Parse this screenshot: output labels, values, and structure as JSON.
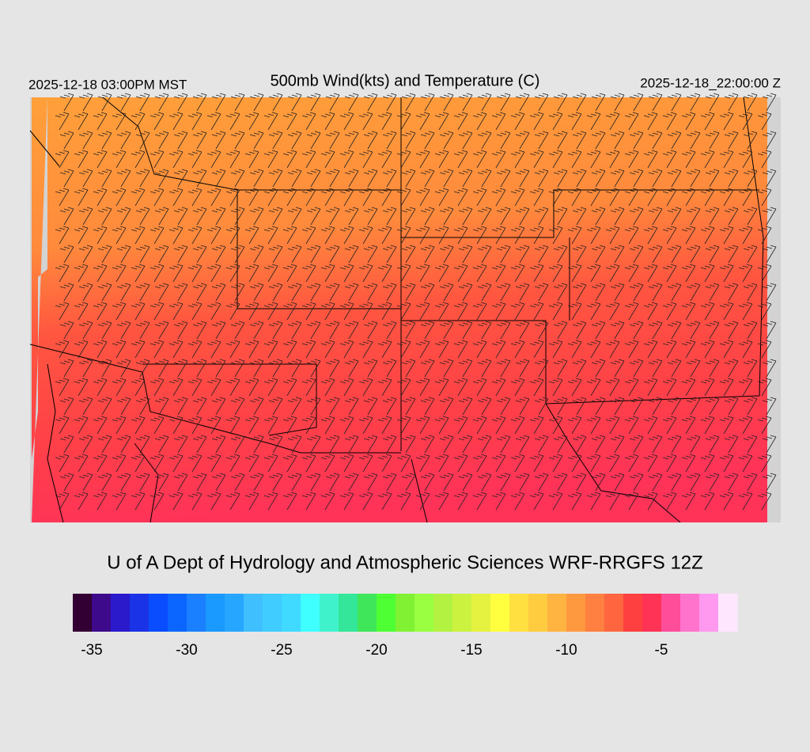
{
  "header": {
    "left": "2025-12-18 03:00PM MST",
    "title": "500mb Wind(kts) and Temperature (C)",
    "right": "2025-12-18_22:00:00 Z"
  },
  "footer": {
    "credit": "U of A Dept of Hydrology and Atmospheric Sciences WRF-RRGFS 12Z"
  },
  "colorbar": {
    "range": [
      -36,
      -1
    ],
    "ticks": [
      -35,
      -30,
      -25,
      -20,
      -15,
      -10,
      -5
    ],
    "colors": [
      "#330033",
      "#3d0a8c",
      "#2a1acc",
      "#1a33e6",
      "#0a4dff",
      "#0a66ff",
      "#1a80ff",
      "#1a99ff",
      "#26a6ff",
      "#40bfff",
      "#40ccff",
      "#40d9ff",
      "#40ffff",
      "#40f2cc",
      "#33e699",
      "#40e659",
      "#4dff33",
      "#80f233",
      "#99ff40",
      "#b3f240",
      "#ccf240",
      "#e6f240",
      "#ffff40",
      "#ffe040",
      "#ffcc40",
      "#ffb340",
      "#ff9940",
      "#ff8040",
      "#ff6640",
      "#ff4040",
      "#ff3355",
      "#ff4d99",
      "#ff73cc",
      "#ff99f0",
      "#ffe6ff"
    ]
  }
}
